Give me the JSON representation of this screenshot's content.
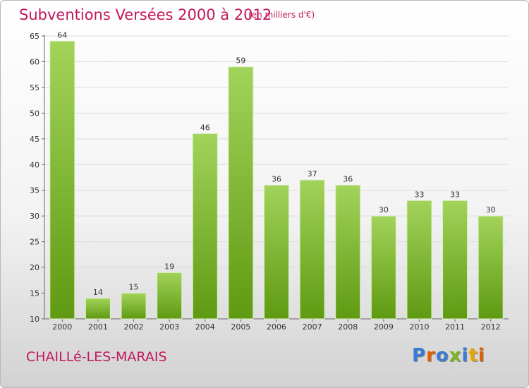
{
  "header": {
    "title": "Subventions Versées 2000 à 2012",
    "subtitle": "(en milliers d'€)"
  },
  "footer": {
    "commune": "CHAILLé-LES-MARAIS",
    "logo": "Proxiti"
  },
  "colors": {
    "bar_light": "#a2d35a",
    "bar_dark": "#5f9a12",
    "title": "#c2185b",
    "grid": "#dcdcdc",
    "logo_letters": [
      "#3a7bd5",
      "#e65c00",
      "#3a7bd5",
      "#7bb61e",
      "#3a7bd5",
      "#e6a800",
      "#e65c00"
    ]
  },
  "chart_data": {
    "type": "bar",
    "title": "Subventions Versées 2000 à 2012",
    "subtitle": "(en milliers d'€)",
    "categories": [
      "2000",
      "2001",
      "2002",
      "2003",
      "2004",
      "2005",
      "2006",
      "2007",
      "2008",
      "2009",
      "2010",
      "2011",
      "2012"
    ],
    "values": [
      64,
      14,
      15,
      19,
      46,
      59,
      36,
      37,
      36,
      30,
      33,
      33,
      30
    ],
    "ylim": [
      10,
      65
    ],
    "yticks": [
      10,
      15,
      20,
      25,
      30,
      35,
      40,
      45,
      50,
      55,
      60,
      65
    ],
    "grid": true,
    "data_labels": true
  }
}
